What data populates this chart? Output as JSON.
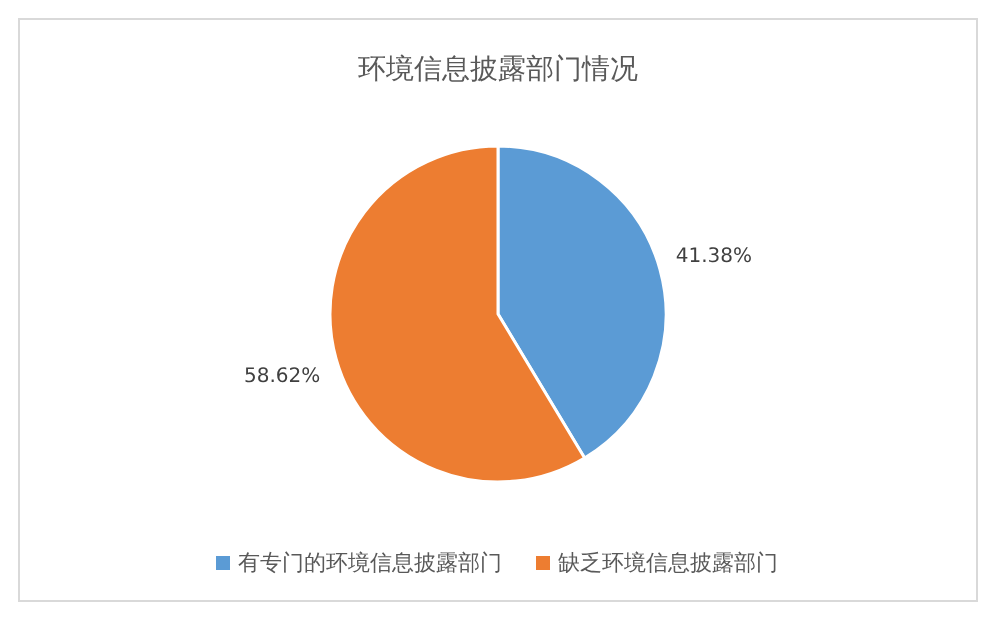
{
  "chart_data": {
    "type": "pie",
    "title": "环境信息披露部门情况",
    "categories": [
      "有专门的环境信息披露部门",
      "缺乏环境信息披露部门"
    ],
    "values": [
      41.38,
      58.62
    ],
    "value_labels": [
      "41.38%",
      "58.62%"
    ],
    "colors": [
      "#5b9bd5",
      "#ed7d31"
    ],
    "legend": "bottom"
  }
}
